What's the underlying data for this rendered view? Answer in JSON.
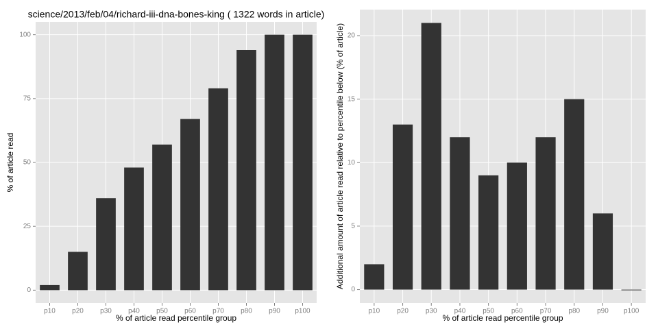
{
  "chart_data": [
    {
      "type": "bar",
      "title": "science/2013/feb/04/richard-iii-dna-bones-king ( 1322 words in article)",
      "x_label": "% of article read percentile group",
      "y_label": "% of article read",
      "categories": [
        "p10",
        "p20",
        "p30",
        "p40",
        "p50",
        "p60",
        "p70",
        "p80",
        "p90",
        "p100"
      ],
      "values": [
        2,
        15,
        36,
        48,
        57,
        67,
        79,
        94,
        100,
        100
      ],
      "color": "#333333",
      "ylim": [
        -5,
        105
      ],
      "yticks": [
        0,
        25,
        50,
        75,
        100
      ],
      "grid": true
    },
    {
      "type": "bar",
      "x_label": "% of article read percentile group",
      "y_label": "Additional amount of article read relative to percentile below (% of article)",
      "categories": [
        "p10",
        "p20",
        "p30",
        "p40",
        "p50",
        "p60",
        "p70",
        "p80",
        "p90",
        "p100"
      ],
      "values": [
        2,
        13,
        21,
        12,
        9,
        10,
        12,
        15,
        6,
        0
      ],
      "color": "#333333",
      "ylim": [
        -1.05,
        22.05
      ],
      "yticks": [
        0,
        5,
        10,
        15,
        20
      ],
      "grid": true
    }
  ]
}
